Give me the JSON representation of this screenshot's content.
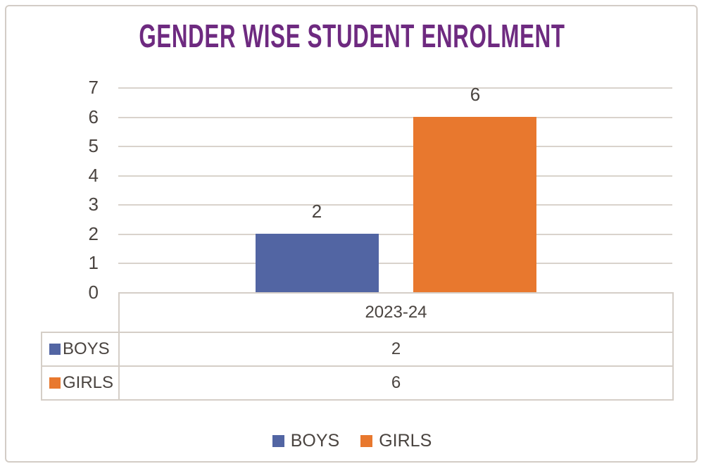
{
  "chart_data": {
    "type": "bar",
    "title": "GENDER WISE STUDENT ENROLMENT",
    "title_color": "#6e2a80",
    "categories": [
      "2023-24"
    ],
    "series": [
      {
        "name": "BOYS",
        "values": [
          2
        ],
        "color": "#5265a3"
      },
      {
        "name": "GIRLS",
        "values": [
          6
        ],
        "color": "#e8782e"
      }
    ],
    "ylim": [
      0,
      7
    ],
    "yticks": [
      0,
      1,
      2,
      3,
      4,
      5,
      6,
      7
    ],
    "grid": true,
    "gridline_color": "#d9d3cc",
    "data_labels_shown": true,
    "data_table_shown": true,
    "legend_position": "bottom",
    "text_color": "#4a4440",
    "xlabel": "",
    "ylabel": ""
  }
}
